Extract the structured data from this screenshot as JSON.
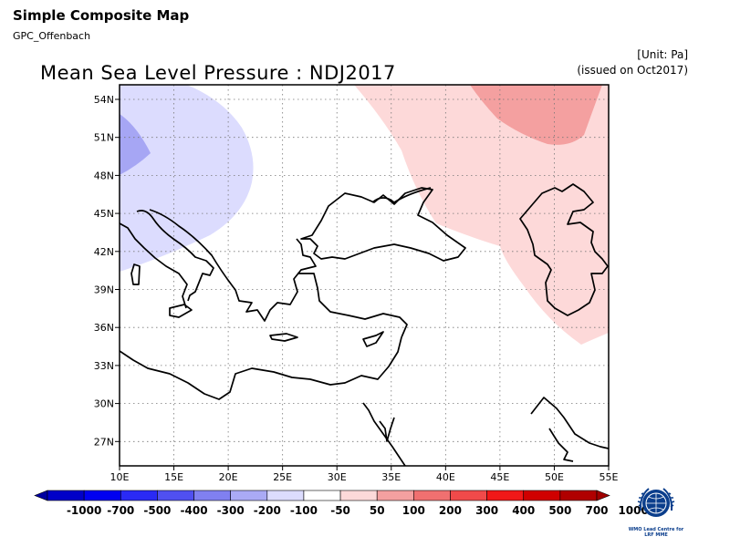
{
  "header": {
    "title": "Simple Composite Map",
    "source": "GPC_Offenbach",
    "unit": "[Unit: Pa]",
    "issued": "(issued on Oct2017)"
  },
  "map": {
    "title": "Mean Sea Level Pressure : NDJ2017",
    "lat_labels": [
      "54N",
      "51N",
      "48N",
      "45N",
      "42N",
      "39N",
      "36N",
      "33N",
      "30N",
      "27N"
    ],
    "lon_labels": [
      "10E",
      "15E",
      "20E",
      "25E",
      "30E",
      "35E",
      "40E",
      "45E",
      "50E",
      "55E"
    ],
    "anomaly_regions": [
      {
        "name": "negative-anomaly-north-west",
        "class": "-100 to -50",
        "color": "#dcdcfe"
      },
      {
        "name": "negative-anomaly-core",
        "class": "-200 to -100",
        "color": "#a6a6f4"
      },
      {
        "name": "positive-anomaly-east",
        "class": "50 to 100",
        "color": "#fdd9d9"
      },
      {
        "name": "positive-anomaly-core",
        "class": "100 to 200",
        "color": "#f4a0a0"
      }
    ]
  },
  "colorbar": {
    "labels": [
      "-1000",
      "-700",
      "-500",
      "-400",
      "-300",
      "-200",
      "-100",
      "-50",
      "50",
      "100",
      "200",
      "300",
      "400",
      "500",
      "700",
      "1000"
    ],
    "colors": [
      "#0000a0",
      "#0000c8",
      "#0000f0",
      "#2a2af5",
      "#5050f0",
      "#8080f0",
      "#aaaaf5",
      "#dcdcfe",
      "#ffffff",
      "#fdd9d9",
      "#f4a0a0",
      "#f07070",
      "#f04a4a",
      "#f01818",
      "#d00000",
      "#b00000",
      "#a00000"
    ]
  },
  "logo": {
    "text_line1": "WMO Lead Centre for",
    "text_line2": "LRF MME"
  }
}
